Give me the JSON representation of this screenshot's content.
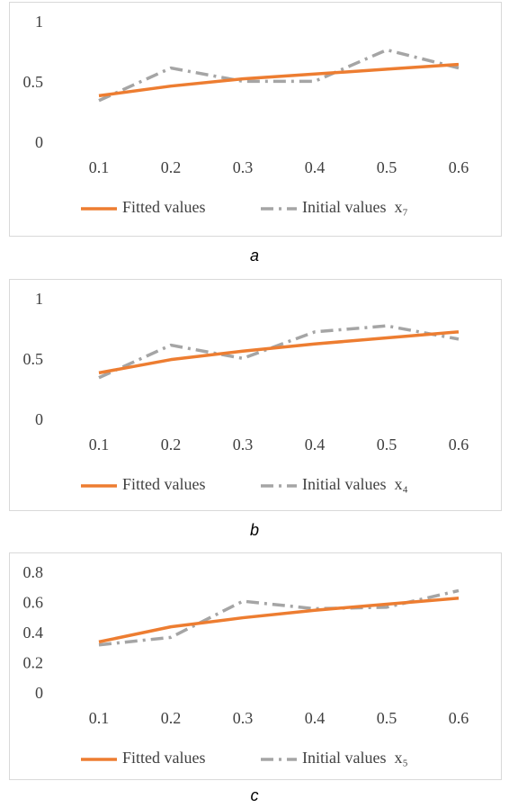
{
  "chart_data": [
    {
      "type": "line",
      "caption": "a",
      "categories": [
        "0.1",
        "0.2",
        "0.3",
        "0.4",
        "0.5",
        "0.6"
      ],
      "series": [
        {
          "name": "Fitted values",
          "color": "#ed7d31",
          "dash": "solid",
          "values": [
            0.4,
            0.48,
            0.54,
            0.58,
            0.62,
            0.66
          ]
        },
        {
          "name": "Initial values  x₇",
          "color": "#a5a5a5",
          "dash": "dashdot",
          "values": [
            0.36,
            0.63,
            0.52,
            0.52,
            0.78,
            0.63
          ]
        }
      ],
      "ylim": [
        0,
        1
      ],
      "yticks": [
        0,
        0.5,
        1
      ],
      "grid": false,
      "legend": "bottom"
    },
    {
      "type": "line",
      "caption": "b",
      "categories": [
        "0.1",
        "0.2",
        "0.3",
        "0.4",
        "0.5",
        "0.6"
      ],
      "series": [
        {
          "name": "Fitted values",
          "color": "#ed7d31",
          "dash": "solid",
          "values": [
            0.4,
            0.51,
            0.58,
            0.64,
            0.69,
            0.74
          ]
        },
        {
          "name": "Initial values  x₄",
          "color": "#a5a5a5",
          "dash": "dashdot",
          "values": [
            0.36,
            0.63,
            0.52,
            0.74,
            0.79,
            0.68
          ]
        }
      ],
      "ylim": [
        0,
        1
      ],
      "yticks": [
        0,
        0.5,
        1
      ],
      "grid": false,
      "legend": "bottom"
    },
    {
      "type": "line",
      "caption": "c",
      "categories": [
        "0.1",
        "0.2",
        "0.3",
        "0.4",
        "0.5",
        "0.6"
      ],
      "series": [
        {
          "name": "Fitted values",
          "color": "#ed7d31",
          "dash": "solid",
          "values": [
            0.35,
            0.45,
            0.51,
            0.56,
            0.6,
            0.64
          ]
        },
        {
          "name": "Initial values  x₅",
          "color": "#a5a5a5",
          "dash": "dashdot",
          "values": [
            0.33,
            0.38,
            0.62,
            0.57,
            0.58,
            0.69
          ]
        }
      ],
      "ylim": [
        0,
        0.8
      ],
      "yticks": [
        0,
        0.2,
        0.4,
        0.6,
        0.8
      ],
      "grid": false,
      "legend": "bottom"
    }
  ]
}
